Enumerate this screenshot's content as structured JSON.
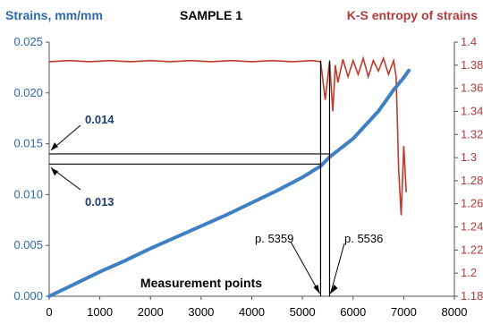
{
  "chart_data": {
    "type": "line",
    "title": "SAMPLE  1",
    "xlabel": "Measurement points",
    "ylabel_left": "Strains, mm/mm",
    "ylabel_right": "K-S entropy of strains",
    "xlim": [
      0,
      8000
    ],
    "ylim_left": [
      0.0,
      0.025
    ],
    "ylim_right": [
      1.18,
      1.4
    ],
    "x_ticks": [
      "0",
      "1000",
      "2000",
      "3000",
      "4000",
      "5000",
      "6000",
      "7000",
      "8000"
    ],
    "y_ticks_left": [
      "0.000",
      "0.005",
      "0.010",
      "0.015",
      "0.020",
      "0.025"
    ],
    "y_ticks_right": [
      "1.18",
      "1.2",
      "1.22",
      "1.24",
      "1.26",
      "1.28",
      "1.3",
      "1.32",
      "1.34",
      "1.36",
      "1.38",
      "1.4"
    ],
    "grid": false,
    "series": [
      {
        "name": "Strains, mm/mm",
        "axis": "left",
        "color": "#3f7fc4",
        "x": [
          0,
          500,
          1000,
          1500,
          2000,
          2500,
          3000,
          3500,
          4000,
          4500,
          5000,
          5359,
          5536,
          6000,
          6500,
          6800,
          7000,
          7100
        ],
        "y": [
          0.0,
          0.0012,
          0.0024,
          0.0035,
          0.0047,
          0.0058,
          0.0069,
          0.008,
          0.0092,
          0.0104,
          0.0117,
          0.0128,
          0.0137,
          0.0155,
          0.0182,
          0.0203,
          0.0215,
          0.0222
        ]
      },
      {
        "name": "K-S entropy of strains",
        "axis": "right",
        "color": "#c0392b",
        "x": [
          0,
          400,
          800,
          1200,
          1600,
          2000,
          2400,
          2800,
          3200,
          3600,
          4000,
          4400,
          4800,
          5200,
          5359,
          5450,
          5536,
          5600,
          5650,
          5700,
          5800,
          5900,
          6000,
          6100,
          6200,
          6300,
          6400,
          6500,
          6600,
          6700,
          6800,
          6850,
          6900,
          6950,
          7000,
          7050
        ],
        "y": [
          1.383,
          1.384,
          1.383,
          1.384,
          1.383,
          1.384,
          1.383,
          1.384,
          1.383,
          1.384,
          1.383,
          1.384,
          1.383,
          1.384,
          1.383,
          1.35,
          1.383,
          1.34,
          1.38,
          1.365,
          1.385,
          1.37,
          1.384,
          1.372,
          1.386,
          1.37,
          1.384,
          1.375,
          1.386,
          1.372,
          1.384,
          1.37,
          1.29,
          1.25,
          1.31,
          1.27
        ]
      }
    ],
    "annotations": [
      {
        "text": "0.014",
        "value": 0.014
      },
      {
        "text": "0.013",
        "value": 0.013
      },
      {
        "text": "p. 5359",
        "x": 5359
      },
      {
        "text": "p. 5536",
        "x": 5536
      }
    ]
  }
}
